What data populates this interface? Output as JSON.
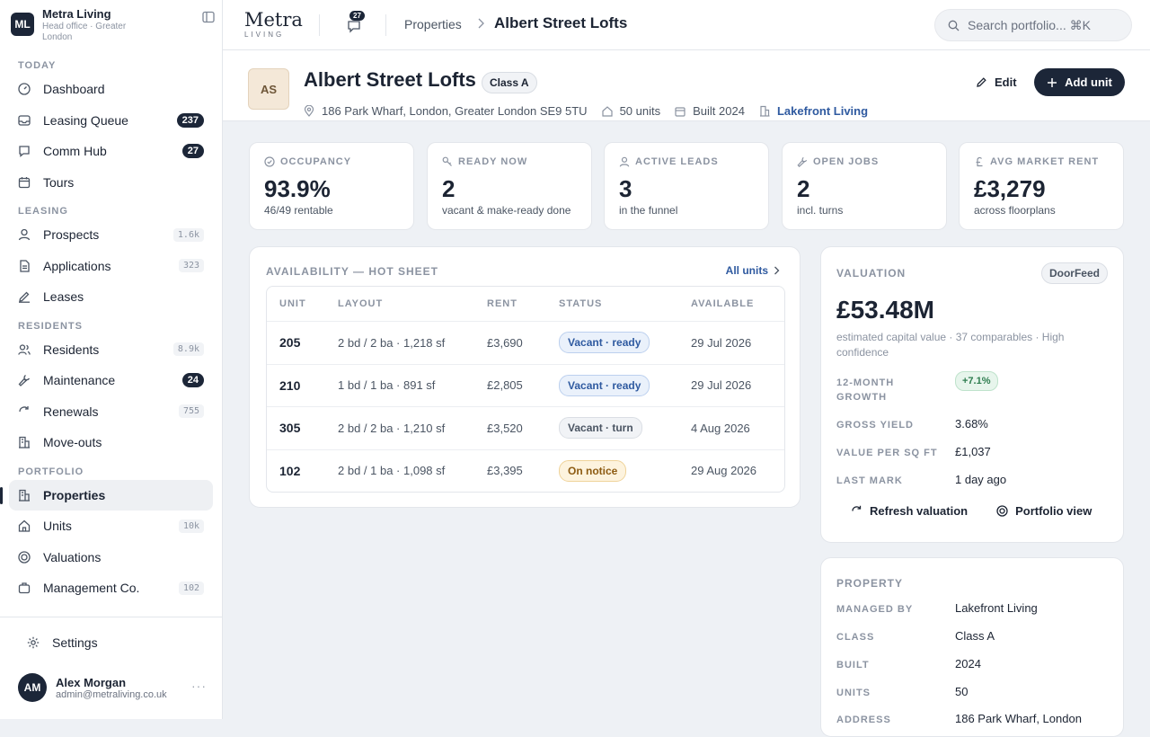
{
  "brand": {
    "initials": "ML",
    "name": "Metra Living",
    "subtitle": "Head office · Greater London"
  },
  "nav": {
    "sections": [
      {
        "label": "TODAY",
        "items": [
          {
            "label": "Dashboard",
            "icon": "dashboard-icon"
          },
          {
            "label": "Leasing Queue",
            "icon": "inbox-icon",
            "badge": "237",
            "badge_style": "dark"
          },
          {
            "label": "Comm Hub",
            "icon": "chat-icon",
            "badge": "27",
            "badge_style": "dark"
          },
          {
            "label": "Tours",
            "icon": "calendar-icon"
          }
        ]
      },
      {
        "label": "LEASING",
        "items": [
          {
            "label": "Prospects",
            "icon": "user-icon",
            "badge": "1.6k",
            "badge_style": "light"
          },
          {
            "label": "Applications",
            "icon": "document-icon",
            "badge": "323",
            "badge_style": "light"
          },
          {
            "label": "Leases",
            "icon": "pen-icon"
          }
        ]
      },
      {
        "label": "RESIDENTS",
        "items": [
          {
            "label": "Residents",
            "icon": "users-icon",
            "badge": "8.9k",
            "badge_style": "light"
          },
          {
            "label": "Maintenance",
            "icon": "wrench-icon",
            "badge": "24",
            "badge_style": "dark"
          },
          {
            "label": "Renewals",
            "icon": "refresh-icon",
            "badge": "755",
            "badge_style": "light"
          },
          {
            "label": "Move-outs",
            "icon": "building-icon"
          }
        ]
      },
      {
        "label": "PORTFOLIO",
        "items": [
          {
            "label": "Properties",
            "icon": "building-icon",
            "active": true
          },
          {
            "label": "Units",
            "icon": "home-icon",
            "badge": "10k",
            "badge_style": "light"
          },
          {
            "label": "Valuations",
            "icon": "target-icon"
          },
          {
            "label": "Management Co.",
            "icon": "briefcase-icon",
            "badge": "102",
            "badge_style": "light"
          }
        ]
      }
    ],
    "settings": "Settings"
  },
  "user": {
    "initials": "AM",
    "name": "Alex Morgan",
    "email": "admin@metraliving.co.uk",
    "more": "···"
  },
  "topbar": {
    "wordmark": "Metra",
    "wordmark_sub": "LIVING",
    "chat_count": "27",
    "crumb_parent": "Properties",
    "crumb_current": "Albert Street Lofts",
    "search_placeholder": "Search portfolio... ⌘K"
  },
  "header": {
    "avatar": "AS",
    "title": "Albert Street Lofts",
    "class_badge": "Class A",
    "address": "186 Park Wharf, London, Greater London SE9 5TU",
    "units": "50 units",
    "built": "Built 2024",
    "manager": "Lakefront Living",
    "edit": "Edit",
    "add_unit": "Add unit"
  },
  "kpis": [
    {
      "label": "OCCUPANCY",
      "icon": "check-circle-icon",
      "value": "93.9%",
      "sub": "46/49 rentable"
    },
    {
      "label": "READY NOW",
      "icon": "key-icon",
      "value": "2",
      "sub": "vacant & make-ready done"
    },
    {
      "label": "ACTIVE LEADS",
      "icon": "user-icon",
      "value": "3",
      "sub": "in the funnel"
    },
    {
      "label": "OPEN JOBS",
      "icon": "wrench-icon",
      "value": "2",
      "sub": "incl. turns"
    },
    {
      "label": "AVG MARKET RENT",
      "icon": "pound-icon",
      "value": "£3,279",
      "sub": "across floorplans"
    }
  ],
  "availability": {
    "title": "AVAILABILITY — HOT SHEET",
    "all_units": "All units",
    "columns": [
      "UNIT",
      "LAYOUT",
      "RENT",
      "STATUS",
      "AVAILABLE"
    ],
    "rows": [
      {
        "unit": "205",
        "layout": "2 bd / 2 ba · 1,218 sf",
        "rent": "£3,690",
        "status": "Vacant · ready",
        "status_style": "ready",
        "available": "29 Jul 2026"
      },
      {
        "unit": "210",
        "layout": "1 bd / 1 ba · 891 sf",
        "rent": "£2,805",
        "status": "Vacant · ready",
        "status_style": "ready",
        "available": "29 Jul 2026"
      },
      {
        "unit": "305",
        "layout": "2 bd / 2 ba · 1,210 sf",
        "rent": "£3,520",
        "status": "Vacant · turn",
        "status_style": "turn",
        "available": "4 Aug 2026"
      },
      {
        "unit": "102",
        "layout": "2 bd / 1 ba · 1,098 sf",
        "rent": "£3,395",
        "status": "On notice",
        "status_style": "notice",
        "available": "29 Aug 2026"
      }
    ]
  },
  "valuation": {
    "title": "VALUATION",
    "source": "DoorFeed",
    "amount": "£53.48M",
    "description": "estimated capital value · 37 comparables · High confidence",
    "growth_label": "12-MONTH GROWTH",
    "growth": "+7.1%",
    "yield_label": "GROSS YIELD",
    "yield": "3.68%",
    "psf_label": "VALUE PER SQ FT",
    "psf": "£1,037",
    "mark_label": "LAST MARK",
    "mark": "1 day ago",
    "refresh": "Refresh valuation",
    "portfolio": "Portfolio view"
  },
  "property": {
    "title": "PROPERTY",
    "rows": [
      {
        "label": "MANAGED BY",
        "value": "Lakefront Living"
      },
      {
        "label": "CLASS",
        "value": "Class A"
      },
      {
        "label": "BUILT",
        "value": "2024"
      },
      {
        "label": "UNITS",
        "value": "50"
      },
      {
        "label": "ADDRESS",
        "value": "186 Park Wharf, London"
      }
    ]
  }
}
